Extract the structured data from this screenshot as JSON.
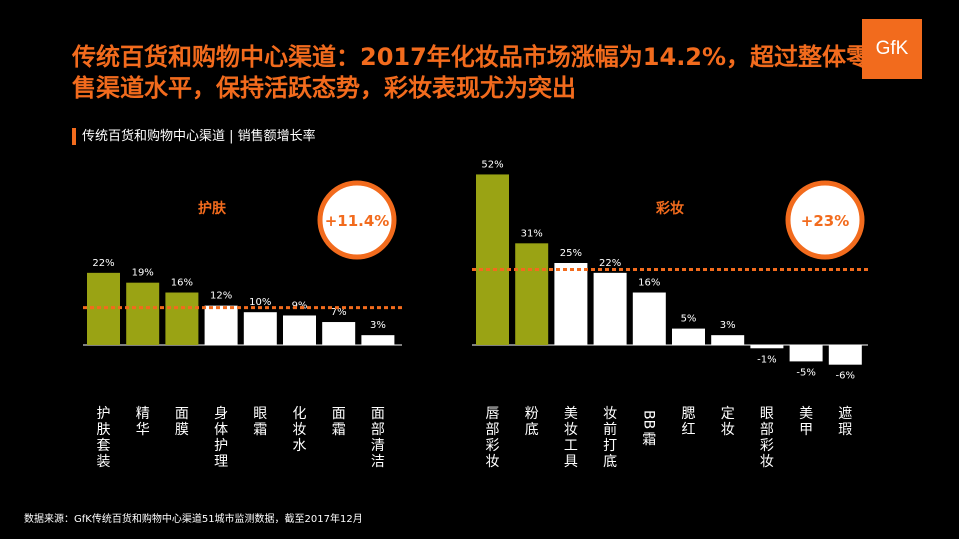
{
  "title": "传统百货和购物中心渠道：2017年化妆品市场涨幅为14.2%，超过整体零售渠道水平，保持活跃态势，彩妆表现尤为突出",
  "logo_text": "GfK",
  "subtitle": "传统百货和购物中心渠道 | 销售额增长率",
  "source": "数据来源：GfK传统百货和购物中心渠道51城市监测数据，截至2017年12月",
  "colors": {
    "accent": "#f26b1d",
    "highlight_bar": "#9aa314",
    "normal_bar": "#ffffff",
    "background": "#000000"
  },
  "chart_data": [
    {
      "type": "bar",
      "group_label": "护肤",
      "average_label": "+11.4%",
      "average": 11.4,
      "categories": [
        "护肤套装",
        "精华",
        "面膜",
        "身体护理",
        "眼霜",
        "化妆水",
        "面霜",
        "面部清洁"
      ],
      "values": [
        22,
        19,
        16,
        12,
        10,
        9,
        7,
        3
      ],
      "value_labels": [
        "22%",
        "19%",
        "16%",
        "12%",
        "10%",
        "9%",
        "7%",
        "3%"
      ],
      "highlighted": [
        true,
        true,
        true,
        false,
        false,
        false,
        false,
        false
      ]
    },
    {
      "type": "bar",
      "group_label": "彩妆",
      "average_label": "+23%",
      "average": 23,
      "categories": [
        "唇部彩妆",
        "粉底",
        "美妆工具",
        "妆前打底",
        "BB霜",
        "腮红",
        "定妆",
        "眼部彩妆",
        "美甲",
        "遮瑕"
      ],
      "values": [
        52,
        31,
        25,
        22,
        16,
        5,
        3,
        -1,
        -5,
        -6
      ],
      "value_labels": [
        "52%",
        "31%",
        "25%",
        "22%",
        "16%",
        "5%",
        "3%",
        "-1%",
        "-5%",
        "-6%"
      ],
      "highlighted": [
        true,
        true,
        false,
        false,
        false,
        false,
        false,
        false,
        false,
        false
      ]
    }
  ]
}
